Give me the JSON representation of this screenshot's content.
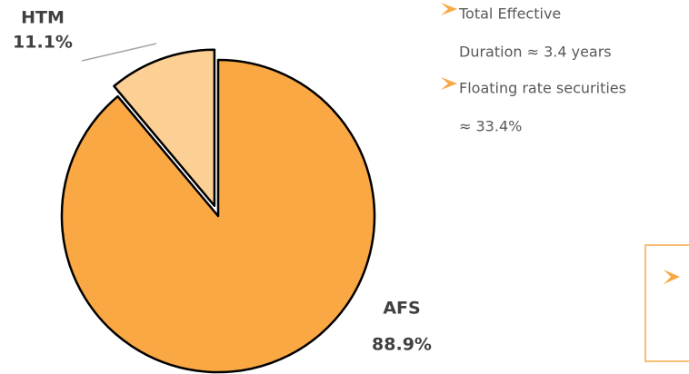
{
  "chart_data": {
    "type": "pie",
    "categories": [
      "AFS",
      "HTM"
    ],
    "values": [
      88.9,
      11.1
    ],
    "value_labels": [
      "88.9%",
      "11.1%"
    ],
    "colors": [
      "#f9a843",
      "#fccf94"
    ],
    "exploded": "HTM"
  },
  "bullets": [
    {
      "lines": [
        "Total Effective",
        "Duration ≈ 3.4 years"
      ]
    },
    {
      "lines": [
        "Floating rate securities",
        "≈ 33.4%"
      ]
    }
  ]
}
